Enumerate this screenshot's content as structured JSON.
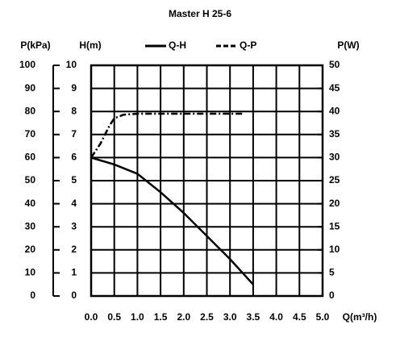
{
  "chart_data": {
    "type": "line",
    "title": "Master H 25-6",
    "x_label": "Q(m³/h)",
    "y_label": "H(m)",
    "y2_label": "P(W)",
    "y3_label": "P(kPa)",
    "xlim": [
      0,
      5
    ],
    "xticks": [
      {
        "value": 0,
        "label": "0.0"
      },
      0.5,
      {
        "value": 1,
        "label": "1.0"
      },
      1.5,
      {
        "value": 2,
        "label": "2.0"
      },
      2.5,
      {
        "value": 3,
        "label": "3.0"
      },
      3.5,
      {
        "value": 4,
        "label": "4.0"
      },
      4.5,
      {
        "value": 5,
        "label": "5.0"
      }
    ],
    "ylim": [
      0,
      10
    ],
    "yticks": [
      0,
      1,
      2,
      3,
      4,
      5,
      6,
      7,
      8,
      9,
      10
    ],
    "y2lim": [
      0,
      50
    ],
    "y2ticks": [
      0,
      5,
      10,
      15,
      20,
      25,
      30,
      35,
      40,
      45,
      50
    ],
    "y3lim": [
      0,
      100
    ],
    "y3ticks": [
      0,
      10,
      20,
      30,
      40,
      50,
      60,
      70,
      80,
      90,
      100
    ],
    "grid": true,
    "series": [
      {
        "name": "Q-H",
        "color": "#000000",
        "dash": false,
        "x": [
          0,
          0.5,
          1,
          1.5,
          2,
          2.5,
          3,
          3.5
        ],
        "values": [
          6,
          5.7,
          5.3,
          4.5,
          3.6,
          2.6,
          1.6,
          0.5
        ]
      },
      {
        "name": "Q-P",
        "color": "#000000",
        "dash": true,
        "axis": "y2",
        "x": [
          0,
          0.2,
          0.4,
          0.5,
          0.7,
          1,
          3.3
        ],
        "values": [
          30,
          33,
          37,
          38.5,
          39.3,
          39.5,
          39.5
        ]
      }
    ]
  }
}
